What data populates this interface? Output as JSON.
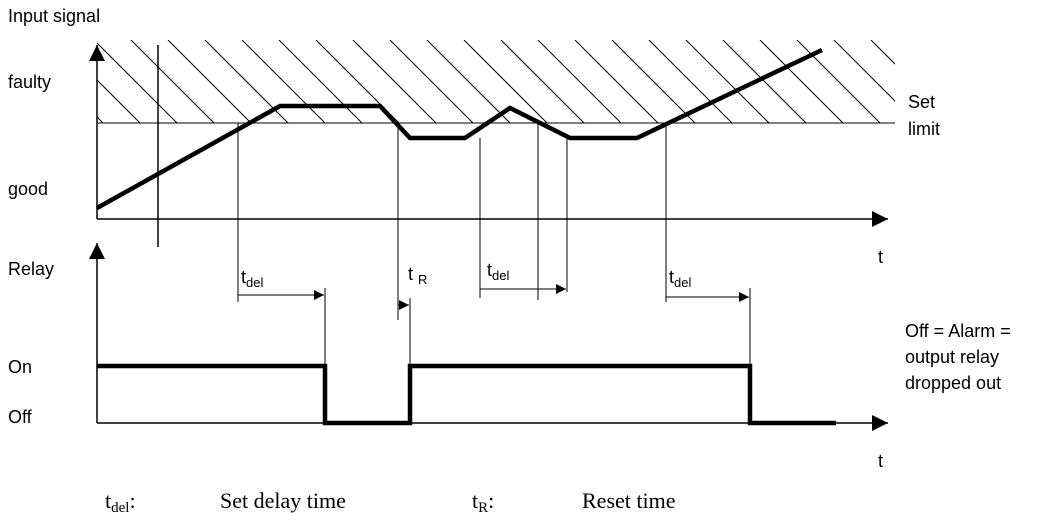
{
  "top_axis": {
    "title": "Input signal",
    "levels": [
      "faulty",
      "good"
    ],
    "limit_label": [
      "Set",
      "limit"
    ],
    "time_label": "t"
  },
  "bottom_axis": {
    "title": "Relay",
    "levels": [
      "On",
      "Off"
    ],
    "time_label": "t",
    "note": [
      "Off = Alarm =",
      "output relay",
      "dropped out"
    ]
  },
  "intervals": [
    {
      "base": "t",
      "sub": "del"
    },
    {
      "base": "t",
      "sub": "R"
    },
    {
      "base": "t",
      "sub": "del"
    },
    {
      "base": "t",
      "sub": "del"
    }
  ],
  "legend": [
    {
      "base": "t",
      "sub": "del",
      "colon": ":",
      "text": "Set delay time"
    },
    {
      "base": "t",
      "sub": "R",
      "colon": ":",
      "text": "Reset time"
    }
  ]
}
